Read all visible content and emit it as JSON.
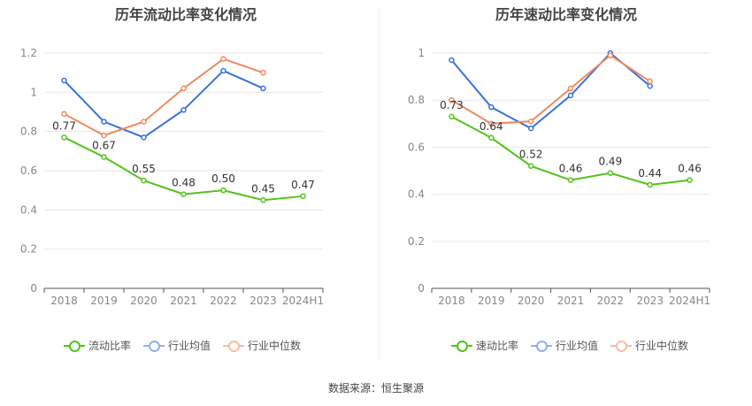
{
  "colors": {
    "company": "#52c41a",
    "avg": "#3a72d8",
    "median": "#f08a5d",
    "grid": "#e6e6e6",
    "axis": "#888888",
    "label": "#333333"
  },
  "chart_data": [
    {
      "type": "line",
      "title": "历年流动比率变化情况",
      "categories": [
        "2018",
        "2019",
        "2020",
        "2021",
        "2022",
        "2023",
        "2024H1"
      ],
      "ylim": [
        0,
        1.2
      ],
      "yticks": [
        "0",
        "0.2",
        "0.4",
        "0.6",
        "0.8",
        "1",
        "1.2"
      ],
      "grid": true,
      "legend_position": "bottom",
      "series": [
        {
          "name": "流动比率",
          "key": "company",
          "values": [
            0.77,
            0.67,
            0.55,
            0.48,
            0.5,
            0.45,
            0.47
          ],
          "labels": [
            "0.77",
            "0.67",
            "0.55",
            "0.48",
            "0.50",
            "0.45",
            "0.47"
          ]
        },
        {
          "name": "行业均值",
          "key": "avg",
          "values": [
            1.06,
            0.85,
            0.77,
            0.91,
            1.11,
            1.02,
            null
          ]
        },
        {
          "name": "行业中位数",
          "key": "median",
          "values": [
            0.89,
            0.78,
            0.85,
            1.02,
            1.17,
            1.1,
            null
          ]
        }
      ]
    },
    {
      "type": "line",
      "title": "历年速动比率变化情况",
      "categories": [
        "2018",
        "2019",
        "2020",
        "2021",
        "2022",
        "2023",
        "2024H1"
      ],
      "ylim": [
        0,
        1
      ],
      "yticks": [
        "0",
        "0.2",
        "0.4",
        "0.6",
        "0.8",
        "1"
      ],
      "grid": true,
      "legend_position": "bottom",
      "series": [
        {
          "name": "速动比率",
          "key": "company",
          "values": [
            0.73,
            0.64,
            0.52,
            0.46,
            0.49,
            0.44,
            0.46
          ],
          "labels": [
            "0.73",
            "0.64",
            "0.52",
            "0.46",
            "0.49",
            "0.44",
            "0.46"
          ]
        },
        {
          "name": "行业均值",
          "key": "avg",
          "values": [
            0.97,
            0.77,
            0.68,
            0.82,
            1.0,
            0.86,
            null
          ]
        },
        {
          "name": "行业中位数",
          "key": "median",
          "values": [
            0.8,
            0.7,
            0.71,
            0.85,
            0.99,
            0.88,
            null
          ]
        }
      ]
    }
  ],
  "legend_left": [
    "流动比率",
    "行业均值",
    "行业中位数"
  ],
  "legend_right": [
    "速动比率",
    "行业均值",
    "行业中位数"
  ],
  "source": "数据来源：恒生聚源"
}
